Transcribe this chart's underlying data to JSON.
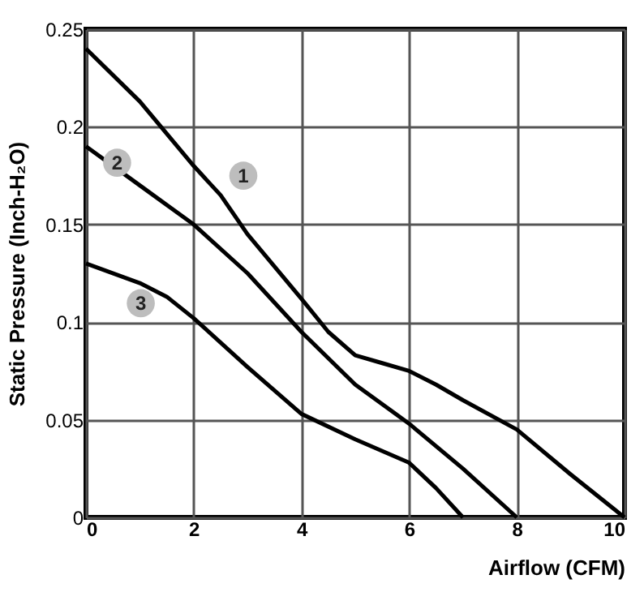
{
  "chart_data": {
    "type": "line",
    "xlabel": "Airflow (CFM)",
    "ylabel": "Static Pressure (Inch-H₂O)",
    "xlim": [
      0,
      10
    ],
    "xticks": [
      0,
      2,
      4,
      6,
      8,
      10
    ],
    "ylim": [
      0,
      0.25
    ],
    "yticks": [
      0,
      0.05,
      0.1,
      0.15,
      0.2,
      0.25
    ],
    "grid": true,
    "legend": false,
    "line_style": "solid",
    "marker": "none",
    "series": [
      {
        "name": "1",
        "color": "#000000",
        "x": [
          0,
          1,
          2,
          2.5,
          3,
          4,
          4.5,
          5,
          5.5,
          6,
          6.5,
          7,
          8,
          9,
          10
        ],
        "values": [
          0.24,
          0.213,
          0.18,
          0.165,
          0.145,
          0.112,
          0.095,
          0.083,
          0.079,
          0.075,
          0.068,
          0.06,
          0.045,
          0.022,
          0
        ]
      },
      {
        "name": "2",
        "color": "#000000",
        "x": [
          0,
          1,
          2,
          3,
          4,
          5,
          6,
          7,
          8
        ],
        "values": [
          0.19,
          0.17,
          0.15,
          0.125,
          0.095,
          0.068,
          0.048,
          0.025,
          0
        ]
      },
      {
        "name": "3",
        "color": "#000000",
        "x": [
          0,
          1,
          1.5,
          2,
          3,
          4,
          5,
          6,
          6.5,
          7
        ],
        "values": [
          0.13,
          0.12,
          0.113,
          0.102,
          0.077,
          0.053,
          0.04,
          0.028,
          0.015,
          0
        ]
      }
    ]
  }
}
